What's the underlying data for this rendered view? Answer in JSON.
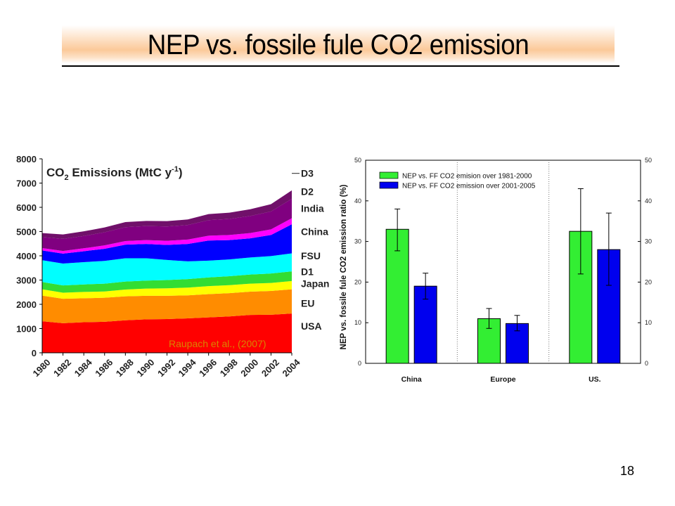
{
  "slide": {
    "title": "NEP vs. fossile fule CO2 emission",
    "page_number": "18"
  },
  "chart_data": [
    {
      "type": "area",
      "stacked": true,
      "title": "CO₂ Emissions (MtC y⁻¹)",
      "title_main": "CO",
      "title_sub": "2",
      "title_rest": " Emissions (MtC y",
      "title_sup": "-1",
      "title_end": ")",
      "source_note": "Raupach et al., (2007)",
      "x": [
        1980,
        1982,
        1984,
        1986,
        1988,
        1990,
        1992,
        1994,
        1996,
        1998,
        2000,
        2002,
        2004
      ],
      "xticks": [
        "1980",
        "1982",
        "1984",
        "1986",
        "1988",
        "1990",
        "1992",
        "1994",
        "1996",
        "1998",
        "2000",
        "2002",
        "2004"
      ],
      "yticks": [
        "0",
        "1000",
        "2000",
        "3000",
        "4000",
        "5000",
        "6000",
        "7000",
        "8000"
      ],
      "ylim": [
        0,
        8000
      ],
      "xlim": [
        1980,
        2004
      ],
      "series": [
        {
          "name": "USA",
          "color": "#ff0000",
          "values": [
            1300,
            1220,
            1260,
            1280,
            1340,
            1380,
            1390,
            1420,
            1460,
            1500,
            1560,
            1570,
            1620
          ]
        },
        {
          "name": "EU",
          "color": "#ff8c00",
          "values": [
            1060,
            1010,
            990,
            990,
            990,
            970,
            960,
            950,
            960,
            960,
            960,
            980,
            1000
          ]
        },
        {
          "name": "Japan",
          "color": "#ffff00",
          "values": [
            260,
            250,
            260,
            260,
            280,
            300,
            310,
            320,
            330,
            330,
            330,
            330,
            340
          ]
        },
        {
          "name": "D1",
          "color": "#33dd33",
          "values": [
            300,
            300,
            310,
            320,
            330,
            330,
            340,
            350,
            360,
            370,
            380,
            390,
            400
          ]
        },
        {
          "name": "FSU",
          "color": "#00ffff",
          "values": [
            900,
            900,
            920,
            940,
            960,
            920,
            830,
            730,
            690,
            690,
            700,
            720,
            740
          ]
        },
        {
          "name": "China",
          "color": "#0000ff",
          "values": [
            400,
            410,
            450,
            500,
            560,
            590,
            620,
            720,
            830,
            800,
            790,
            870,
            1200
          ]
        },
        {
          "name": "India",
          "color": "#ff00ff",
          "values": [
            100,
            110,
            120,
            140,
            150,
            160,
            170,
            180,
            200,
            210,
            220,
            230,
            250
          ]
        },
        {
          "name": "D2",
          "color": "#800080",
          "values": [
            450,
            500,
            510,
            540,
            570,
            580,
            590,
            600,
            640,
            660,
            700,
            740,
            800
          ]
        },
        {
          "name": "D3",
          "color": "#70106a",
          "values": [
            170,
            180,
            190,
            200,
            210,
            210,
            220,
            230,
            250,
            260,
            280,
            300,
            350
          ]
        }
      ]
    },
    {
      "type": "bar",
      "ylabel": "NEP vs. fossile fule CO2 emission ratio (%)",
      "ylim": [
        0,
        50
      ],
      "yticks": [
        "0",
        "10",
        "20",
        "30",
        "40",
        "50"
      ],
      "categories": [
        "China",
        "Europe",
        "US."
      ],
      "series": [
        {
          "name": "NEP vs. FF CO2 emision over 1981-2000",
          "color": "#33ee33",
          "values": [
            33,
            11,
            32.5
          ],
          "err_low": [
            27.7,
            8.6,
            22
          ],
          "err_high": [
            38,
            13.5,
            43
          ]
        },
        {
          "name": "NEP vs. FF CO2 emission over 2001-2005",
          "color": "#0000ee",
          "values": [
            19,
            9.8,
            28
          ],
          "err_low": [
            15.8,
            8,
            19.2
          ],
          "err_high": [
            22.2,
            11.8,
            37
          ]
        }
      ],
      "legend": "top-left"
    }
  ]
}
